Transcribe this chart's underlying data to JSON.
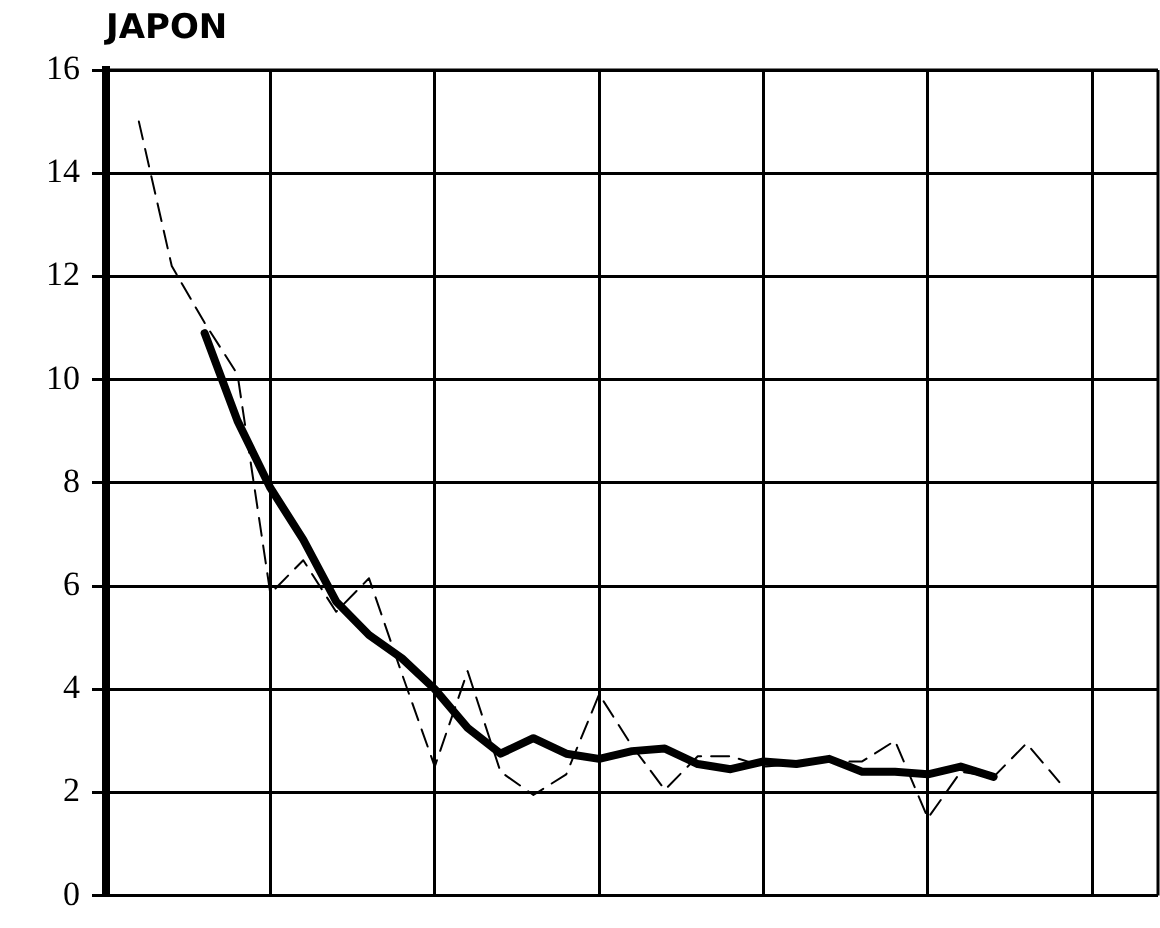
{
  "chart_data": {
    "type": "line",
    "title": "JAPON",
    "categories": [
      null,
      null,
      null,
      null,
      null,
      null,
      null,
      null,
      null,
      null,
      null,
      null,
      null,
      null,
      null,
      null,
      null,
      null,
      null,
      null,
      null,
      null,
      null,
      null,
      null,
      null,
      null,
      null,
      null,
      null,
      null,
      null,
      null
    ],
    "ylim": [
      0,
      16
    ],
    "yticks": [
      0,
      2,
      4,
      6,
      8,
      10,
      12,
      14,
      16
    ],
    "grid": true,
    "tick_labels": "y",
    "marker": "none",
    "series": [
      {
        "color": "#000000",
        "line_style": "dashed",
        "values": [
          null,
          15.0,
          12.2,
          11.1,
          10.1,
          5.85,
          6.5,
          5.5,
          6.15,
          4.3,
          2.5,
          4.35,
          2.4,
          1.95,
          2.35,
          3.9,
          2.9,
          2.05,
          2.7,
          2.7,
          2.5,
          2.55,
          2.6,
          2.6,
          3.0,
          1.5,
          2.4,
          2.3,
          2.95,
          2.2,
          null,
          null,
          null
        ]
      },
      {
        "color": "#000000",
        "line_style": "solid",
        "values": [
          null,
          null,
          null,
          10.9,
          9.2,
          7.9,
          6.9,
          5.7,
          5.05,
          4.6,
          4.0,
          3.25,
          2.75,
          3.05,
          2.75,
          2.65,
          2.8,
          2.85,
          2.55,
          2.45,
          2.6,
          2.55,
          2.65,
          2.4,
          2.4,
          2.35,
          2.5,
          2.3,
          null,
          null,
          null,
          null,
          null
        ]
      }
    ]
  }
}
